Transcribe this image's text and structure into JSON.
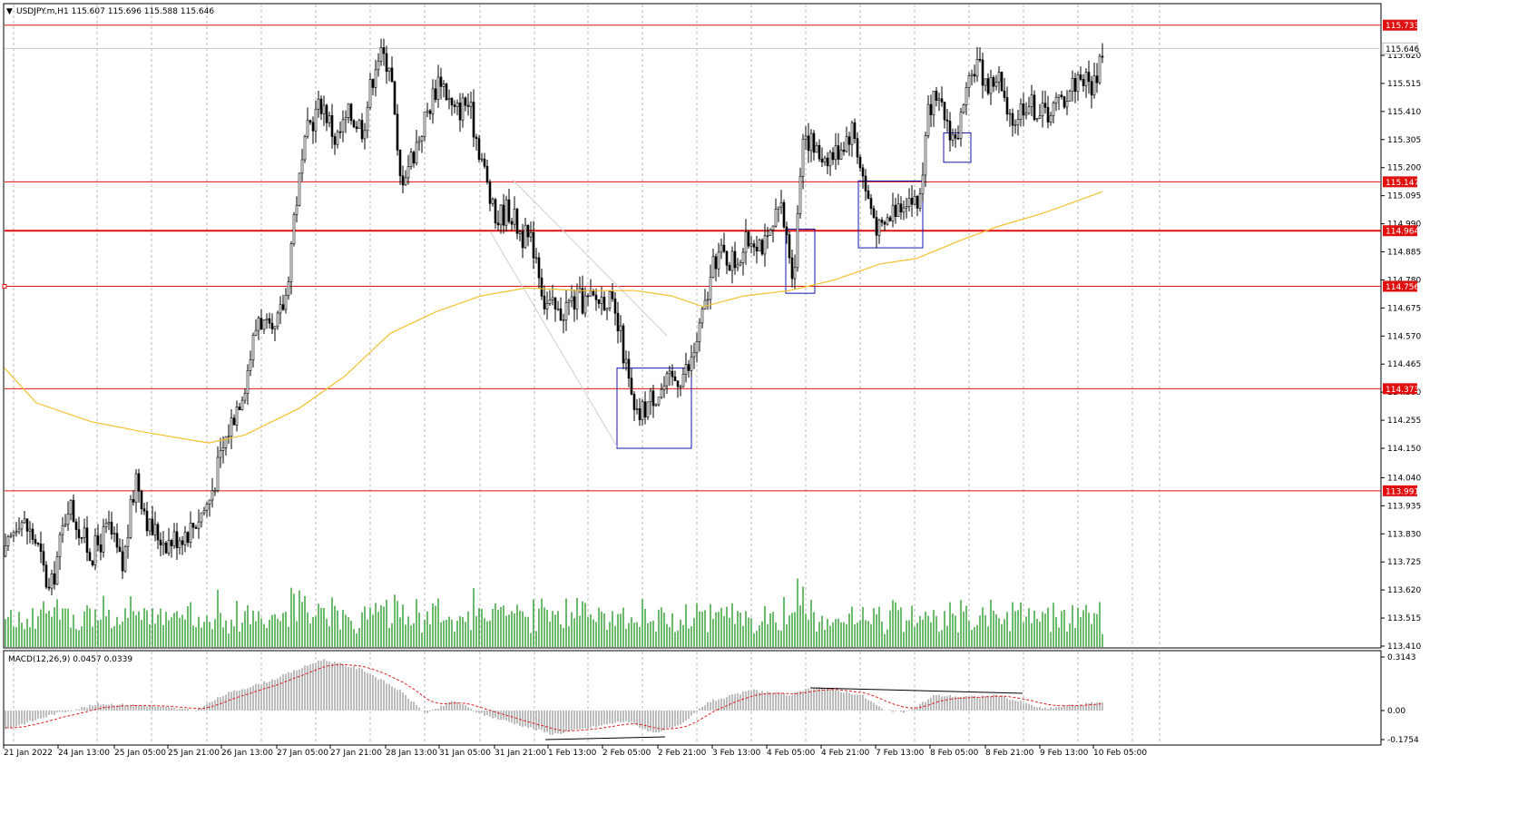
{
  "chart_data": {
    "type": "candlestick",
    "header": {
      "symbol": "USDJPY.m,H1",
      "open": "115.607",
      "high": "115.696",
      "low": "115.588",
      "close": "115.646"
    },
    "indicator_label": "MACD(12,26,9) 0.0457 0.0339",
    "price_axis_ticks": [
      "115.620",
      "115.515",
      "115.410",
      "115.305",
      "115.200",
      "115.095",
      "114.990",
      "114.885",
      "114.780",
      "114.675",
      "114.570",
      "114.465",
      "114.360",
      "114.255",
      "114.150",
      "114.040",
      "113.935",
      "113.830",
      "113.725",
      "113.620",
      "113.515",
      "113.410"
    ],
    "macd_axis_ticks": [
      "0.3143",
      "0.00",
      "-0.1754"
    ],
    "time_axis_ticks": [
      "21 Jan 2022",
      "24 Jan 13:00",
      "25 Jan 05:00",
      "25 Jan 21:00",
      "26 Jan 13:00",
      "27 Jan 05:00",
      "27 Jan 21:00",
      "28 Jan 13:00",
      "31 Jan 05:00",
      "31 Jan 21:00",
      "1 Feb 13:00",
      "2 Feb 05:00",
      "2 Feb 21:00",
      "3 Feb 13:00",
      "4 Feb 05:00",
      "4 Feb 21:00",
      "7 Feb 13:00",
      "8 Feb 05:00",
      "8 Feb 21:00",
      "9 Feb 13:00",
      "10 Feb 05:00"
    ],
    "horizontal_levels": [
      "115.733",
      "115.147",
      "114.964",
      "114.756",
      "114.373",
      "113.991"
    ],
    "current_price": "115.646",
    "price_path": [
      [
        0,
        113.68
      ],
      [
        20,
        113.9
      ],
      [
        40,
        113.8
      ],
      [
        55,
        113.6
      ],
      [
        75,
        113.95
      ],
      [
        100,
        113.75
      ],
      [
        120,
        113.85
      ],
      [
        135,
        113.7
      ],
      [
        150,
        114.05
      ],
      [
        165,
        113.85
      ],
      [
        185,
        113.8
      ],
      [
        210,
        113.85
      ],
      [
        230,
        113.95
      ],
      [
        250,
        114.2
      ],
      [
        270,
        114.4
      ],
      [
        285,
        114.65
      ],
      [
        300,
        114.55
      ],
      [
        315,
        114.72
      ],
      [
        325,
        115.05
      ],
      [
        340,
        115.35
      ],
      [
        355,
        115.45
      ],
      [
        370,
        115.3
      ],
      [
        385,
        115.4
      ],
      [
        400,
        115.35
      ],
      [
        415,
        115.62
      ],
      [
        430,
        115.6
      ],
      [
        440,
        115.15
      ],
      [
        455,
        115.25
      ],
      [
        470,
        115.4
      ],
      [
        485,
        115.55
      ],
      [
        500,
        115.4
      ],
      [
        515,
        115.45
      ],
      [
        530,
        115.25
      ],
      [
        545,
        115.0
      ],
      [
        560,
        115.05
      ],
      [
        575,
        114.95
      ],
      [
        590,
        114.9
      ],
      [
        600,
        114.7
      ],
      [
        615,
        114.65
      ],
      [
        630,
        114.7
      ],
      [
        650,
        114.7
      ],
      [
        670,
        114.72
      ],
      [
        685,
        114.55
      ],
      [
        700,
        114.25
      ],
      [
        720,
        114.35
      ],
      [
        740,
        114.4
      ],
      [
        760,
        114.45
      ],
      [
        775,
        114.65
      ],
      [
        790,
        114.88
      ],
      [
        810,
        114.85
      ],
      [
        830,
        114.95
      ],
      [
        845,
        114.9
      ],
      [
        860,
        115.05
      ],
      [
        875,
        114.8
      ],
      [
        885,
        115.35
      ],
      [
        900,
        115.25
      ],
      [
        920,
        115.25
      ],
      [
        940,
        115.35
      ],
      [
        955,
        115.1
      ],
      [
        970,
        114.95
      ],
      [
        985,
        115.05
      ],
      [
        1000,
        115.1
      ],
      [
        1012,
        115.05
      ],
      [
        1025,
        115.45
      ],
      [
        1040,
        115.4
      ],
      [
        1053,
        115.3
      ],
      [
        1065,
        115.45
      ],
      [
        1075,
        115.6
      ],
      [
        1090,
        115.5
      ],
      [
        1100,
        115.55
      ],
      [
        1112,
        115.35
      ],
      [
        1130,
        115.45
      ],
      [
        1150,
        115.4
      ],
      [
        1170,
        115.45
      ],
      [
        1190,
        115.55
      ],
      [
        1205,
        115.5
      ],
      [
        1215,
        115.65
      ]
    ],
    "ma_points": [
      [
        5,
        114.45
      ],
      [
        40,
        114.32
      ],
      [
        100,
        114.25
      ],
      [
        160,
        114.21
      ],
      [
        230,
        114.17
      ],
      [
        270,
        114.2
      ],
      [
        330,
        114.3
      ],
      [
        380,
        114.42
      ],
      [
        430,
        114.58
      ],
      [
        480,
        114.66
      ],
      [
        530,
        114.72
      ],
      [
        580,
        114.75
      ],
      [
        640,
        114.74
      ],
      [
        700,
        114.74
      ],
      [
        740,
        114.72
      ],
      [
        775,
        114.68
      ],
      [
        820,
        114.72
      ],
      [
        870,
        114.74
      ],
      [
        920,
        114.78
      ],
      [
        970,
        114.84
      ],
      [
        1010,
        114.86
      ],
      [
        1060,
        114.93
      ],
      [
        1100,
        114.98
      ],
      [
        1150,
        115.03
      ],
      [
        1215,
        115.11
      ]
    ],
    "boxes": [
      {
        "x1": 680,
        "x2": 762,
        "top": 114.45,
        "bottom": 114.15
      },
      {
        "x1": 866,
        "x2": 898,
        "top": 114.97,
        "bottom": 114.73
      },
      {
        "x1": 946,
        "x2": 1017,
        "top": 115.15,
        "bottom": 114.9
      },
      {
        "x1": 1040,
        "x2": 1070,
        "top": 115.33,
        "bottom": 115.22
      }
    ]
  }
}
